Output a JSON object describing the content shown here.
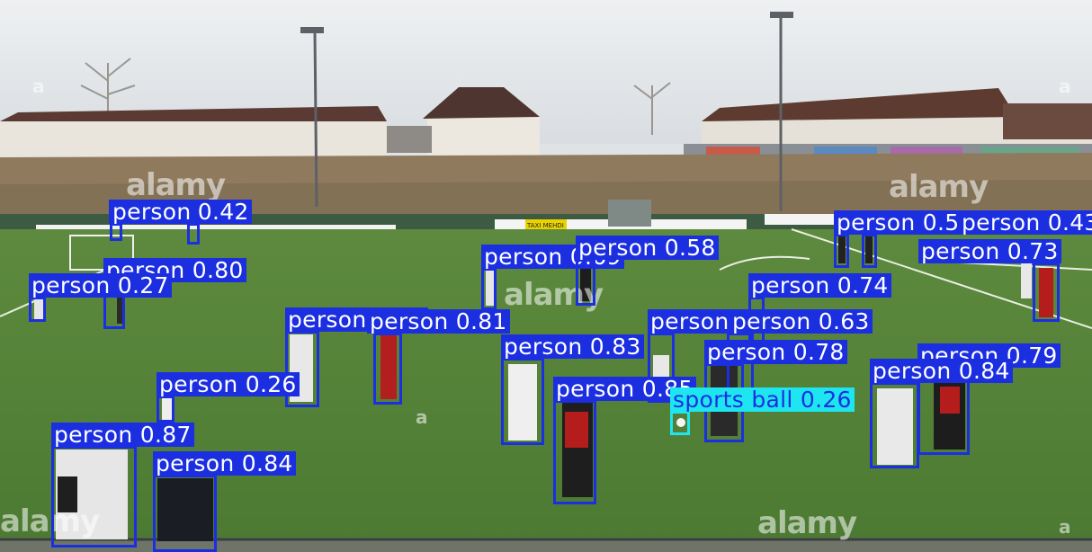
{
  "image": {
    "watermark": "alamy",
    "watermark_mark": "a",
    "sign_text": "TAXI MEHDI"
  },
  "detections": [
    {
      "label": "person 0.42"
    },
    {
      "label": "person"
    },
    {
      "label": "person 0.80"
    },
    {
      "label": "person 0.27"
    },
    {
      "label": "person 0.69"
    },
    {
      "label": "person 0.58"
    },
    {
      "label": "person 0.57"
    },
    {
      "label": "person 0.43"
    },
    {
      "label": "person 0.73"
    },
    {
      "label": "person 0.74"
    },
    {
      "label": "person 0.86"
    },
    {
      "label": "person 0.81"
    },
    {
      "label": "person 0.81"
    },
    {
      "label": "person 0.63"
    },
    {
      "label": "person 0.83"
    },
    {
      "label": "person 0.78"
    },
    {
      "label": "person 0.79"
    },
    {
      "label": "person 0.84"
    },
    {
      "label": "person 0.26"
    },
    {
      "label": "person 0.85"
    },
    {
      "label": "sports ball 0.26"
    },
    {
      "label": "person 0.87"
    },
    {
      "label": "person 0.84"
    }
  ]
}
